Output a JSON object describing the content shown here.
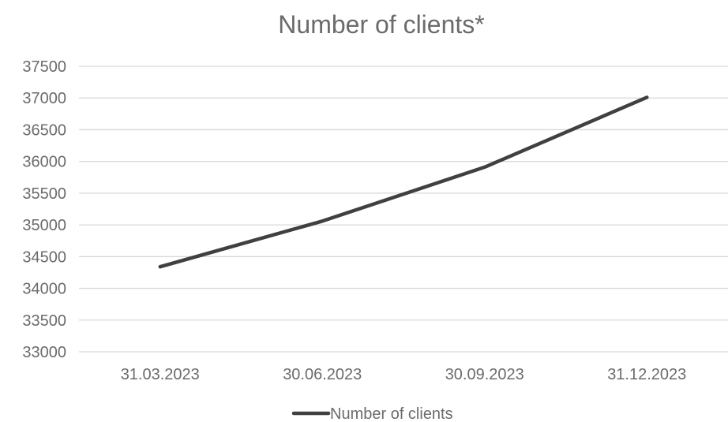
{
  "chart_data": {
    "type": "line",
    "title": "Number of clients*",
    "xlabel": "",
    "ylabel": "",
    "categories": [
      "31.03.2023",
      "30.06.2023",
      "30.09.2023",
      "31.12.2023"
    ],
    "series": [
      {
        "name": "Number of clients",
        "values": [
          34340,
          35060,
          35910,
          37010
        ],
        "color": "#404040"
      }
    ],
    "ylim": [
      33000,
      37500
    ],
    "yticks": [
      "33000",
      "33500",
      "34000",
      "34500",
      "35000",
      "35500",
      "36000",
      "36500",
      "37000",
      "37500"
    ],
    "grid": true,
    "legend_position": "bottom"
  }
}
